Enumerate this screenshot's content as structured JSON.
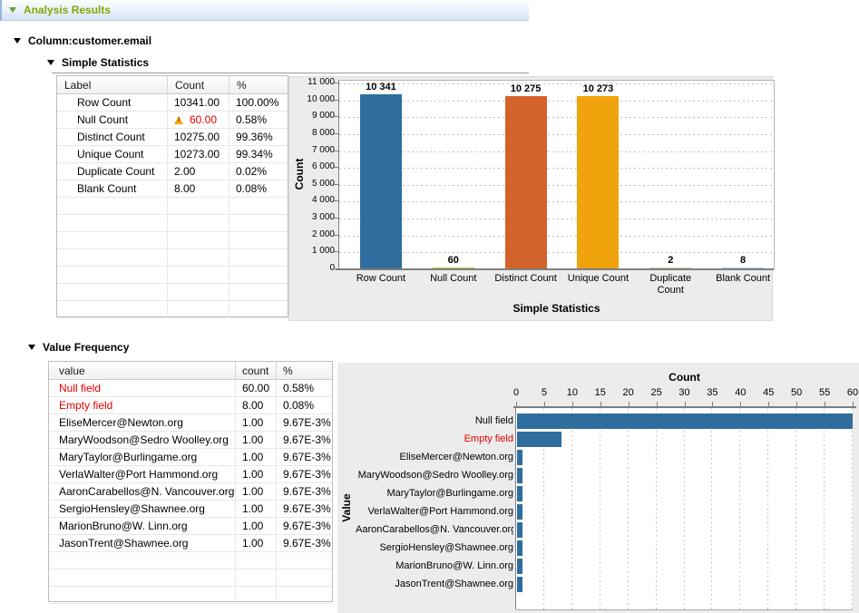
{
  "header": {
    "title": "Analysis Results"
  },
  "sections": {
    "column": {
      "label": "Column:customer.email"
    },
    "simple_statistics": {
      "label": "Simple Statistics"
    },
    "value_frequency": {
      "label": "Value Frequency"
    }
  },
  "simple_stats_table": {
    "columns": [
      "Label",
      "Count",
      "%"
    ],
    "rows": [
      {
        "cells": [
          "Row Count",
          "10341.00",
          "100.00%"
        ]
      },
      {
        "cells": [
          "Null Count",
          "60.00",
          "0.58%"
        ],
        "warning_icon": true,
        "count_red": true
      },
      {
        "cells": [
          "Distinct Count",
          "10275.00",
          "99.36%"
        ]
      },
      {
        "cells": [
          "Unique Count",
          "10273.00",
          "99.34%"
        ]
      },
      {
        "cells": [
          "Duplicate Count",
          "2.00",
          "0.02%"
        ]
      },
      {
        "cells": [
          "Blank Count",
          "8.00",
          "0.08%"
        ]
      }
    ],
    "empty_rows": 7
  },
  "value_frequency_table": {
    "columns": [
      "value",
      "count",
      "%"
    ],
    "rows": [
      {
        "cells": [
          "Null field",
          "60.00",
          "0.58%"
        ],
        "value_red": true
      },
      {
        "cells": [
          "Empty field",
          "8.00",
          "0.08%"
        ],
        "value_red": true
      },
      {
        "cells": [
          "EliseMercer@Newton.org",
          "1.00",
          "9.67E-3%"
        ]
      },
      {
        "cells": [
          "MaryWoodson@Sedro Woolley.org",
          "1.00",
          "9.67E-3%"
        ]
      },
      {
        "cells": [
          "MaryTaylor@Burlingame.org",
          "1.00",
          "9.67E-3%"
        ]
      },
      {
        "cells": [
          "VerlaWalter@Port Hammond.org",
          "1.00",
          "9.67E-3%"
        ]
      },
      {
        "cells": [
          "AaronCarabellos@N. Vancouver.org",
          "1.00",
          "9.67E-3%"
        ]
      },
      {
        "cells": [
          "SergioHensley@Shawnee.org",
          "1.00",
          "9.67E-3%"
        ]
      },
      {
        "cells": [
          "MarionBruno@W. Linn.org",
          "1.00",
          "9.67E-3%"
        ]
      },
      {
        "cells": [
          "JasonTrent@Shawnee.org",
          "1.00",
          "9.67E-3%"
        ]
      }
    ],
    "empty_rows": 3
  },
  "chart_data": [
    {
      "type": "bar",
      "title": "",
      "xlabel": "Simple Statistics",
      "ylabel": "Count",
      "categories": [
        "Row Count",
        "Null Count",
        "Distinct Count",
        "Unique Count",
        "Duplicate Count",
        "Blank Count"
      ],
      "values": [
        10341,
        60,
        10275,
        10273,
        2,
        8
      ],
      "bar_labels": [
        "10 341",
        "60",
        "10 275",
        "10 273",
        "2",
        "8"
      ],
      "bar_colors": [
        "#2e6d9e",
        "#c3ca39",
        "#d4632b",
        "#f0a30c",
        "#cfc9a4",
        "#a9cde0"
      ],
      "ylim": [
        0,
        11000
      ],
      "ytick_step": 1000,
      "ytick_labels": [
        "0",
        "1 000",
        "2 000",
        "3 000",
        "4 000",
        "5 000",
        "6 000",
        "7 000",
        "8 000",
        "9 000",
        "10 000",
        "11 000"
      ],
      "grid": "dotted-horizontal",
      "legend": "none"
    },
    {
      "type": "bar-horizontal",
      "title": "",
      "axis_top_label": "Count",
      "ylabel": "Value",
      "categories": [
        "Null field",
        "Empty field",
        "EliseMercer@Newton.org",
        "MaryWoodson@Sedro Woolley.org",
        "MaryTaylor@Burlingame.org",
        "VerlaWalter@Port Hammond.org",
        "AaronCarabellos@N. Vancouver.org",
        "SergioHensley@Shawnee.org",
        "MarionBruno@W. Linn.org",
        "JasonTrent@Shawnee.org"
      ],
      "values": [
        60,
        8,
        1,
        1,
        1,
        1,
        1,
        1,
        1,
        1
      ],
      "red_category_indexes": [
        1
      ],
      "bar_color": "#2e6d9e",
      "xlim": [
        0,
        60
      ],
      "xticks": [
        0,
        5,
        10,
        15,
        20,
        25,
        30,
        35,
        40,
        45,
        50,
        55,
        60
      ],
      "grid": "dashed-vertical",
      "legend": "none"
    }
  ],
  "colors": {
    "title_olive": "#8aa406",
    "alert_red": "#e00000",
    "bar_blue": "#2e6d9e",
    "panel_gray": "#ececec",
    "titlebar_blue": "#d4e3f6"
  }
}
